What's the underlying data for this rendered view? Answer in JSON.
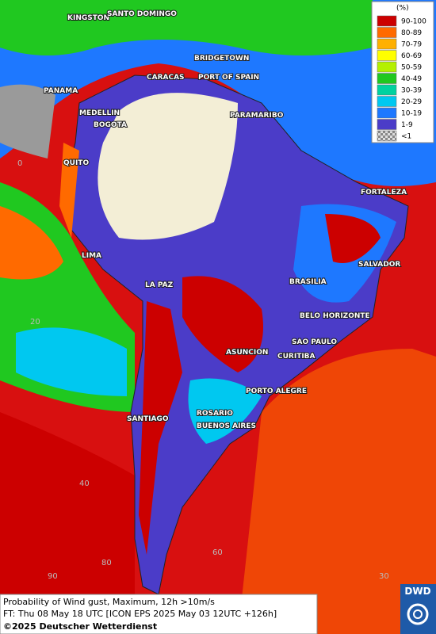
{
  "cities": [
    "KINGSTON",
    "SANTO DOMINGO",
    "BRIDGETOWN",
    "PANAMA",
    "CARACAS",
    "PORT OF SPAIN",
    "MEDELLIN",
    "BOGOTA",
    "PARAMARIBO",
    "QUITO",
    "FORTALEZA",
    "LIMA",
    "SALVADOR",
    "LA PAZ",
    "BRASILIA",
    "BELO HORIZONTE",
    "ASUNCION",
    "SAO PAULO",
    "CURITIBA",
    "PORTO ALEGRE",
    "ROSARIO",
    "SANTIAGO",
    "BUENOS AIRES"
  ],
  "grid_labels": [
    "0",
    "20",
    "40",
    "60",
    "80",
    "90",
    "30"
  ],
  "legend": {
    "title": "(%)",
    "items": [
      {
        "label": "90-100",
        "color": "#cc0000"
      },
      {
        "label": "80-89",
        "color": "#ff6a00"
      },
      {
        "label": "70-79",
        "color": "#ffb000"
      },
      {
        "label": "60-69",
        "color": "#ffff00"
      },
      {
        "label": "50-59",
        "color": "#b4f000"
      },
      {
        "label": "40-49",
        "color": "#20c820"
      },
      {
        "label": "30-39",
        "color": "#00d2a0"
      },
      {
        "label": "20-29",
        "color": "#00c8f0"
      },
      {
        "label": "10-19",
        "color": "#1e78ff"
      },
      {
        "label": "1-9",
        "color": "#4b3cc8"
      },
      {
        "label": "<1",
        "color": "#9a9a9a"
      }
    ]
  },
  "footer": {
    "line1": "Probability of Wind gust, Maximum, 12h >10m/s",
    "line2": "FT: Thu 08 May 18 UTC [ICON EPS 2025 May 03 12UTC +126h]",
    "copyright": "©2025 Deutscher Wetterdienst"
  },
  "logo": "DWD"
}
